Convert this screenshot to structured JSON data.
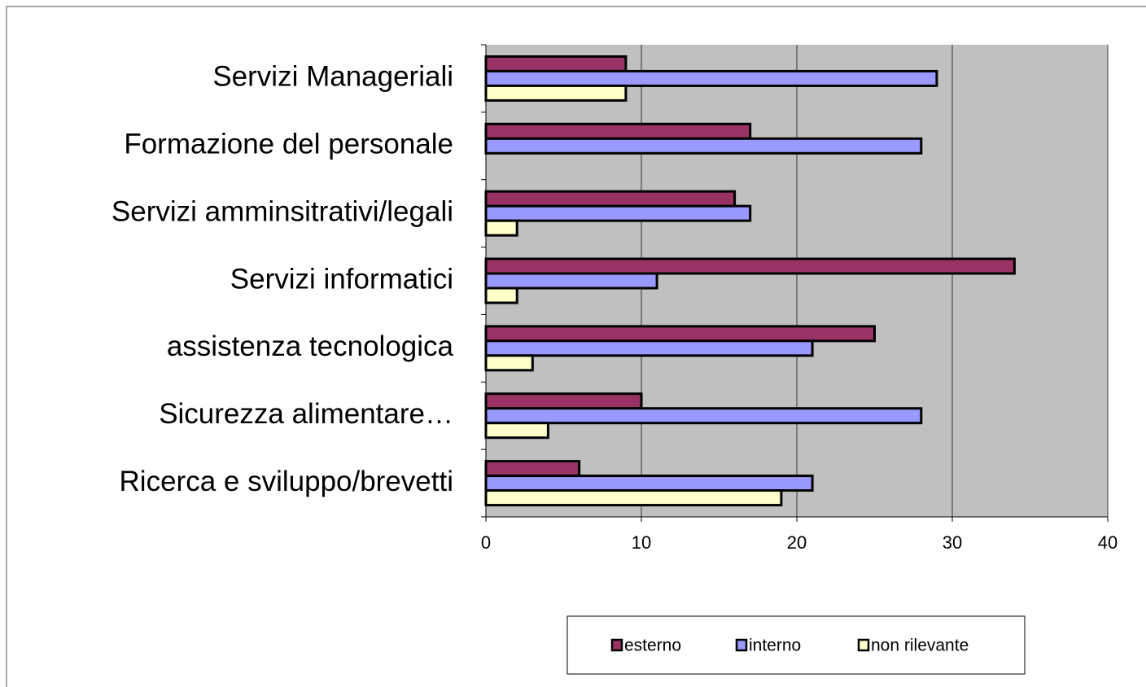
{
  "chart_data": {
    "type": "bar",
    "orientation": "horizontal",
    "categories": [
      "Servizi Manageriali",
      "Formazione del personale",
      "Servizi amminsitrativi/legali",
      "Servizi informatici",
      "assistenza tecnologica",
      "Sicurezza alimentare…",
      "Ricerca e sviluppo/brevetti"
    ],
    "series": [
      {
        "name": "esterno",
        "color": "#993366",
        "values": [
          9,
          17,
          16,
          34,
          25,
          10,
          6
        ]
      },
      {
        "name": "interno",
        "color": "#9999ff",
        "values": [
          29,
          28,
          17,
          11,
          21,
          28,
          21
        ]
      },
      {
        "name": "non rilevante",
        "color": "#ffffcc",
        "values": [
          9,
          0,
          2,
          2,
          3,
          4,
          19
        ]
      }
    ],
    "xlim": [
      0,
      40
    ],
    "xticks": [
      0,
      10,
      20,
      30,
      40
    ],
    "grid": true,
    "legend": "bottom"
  }
}
